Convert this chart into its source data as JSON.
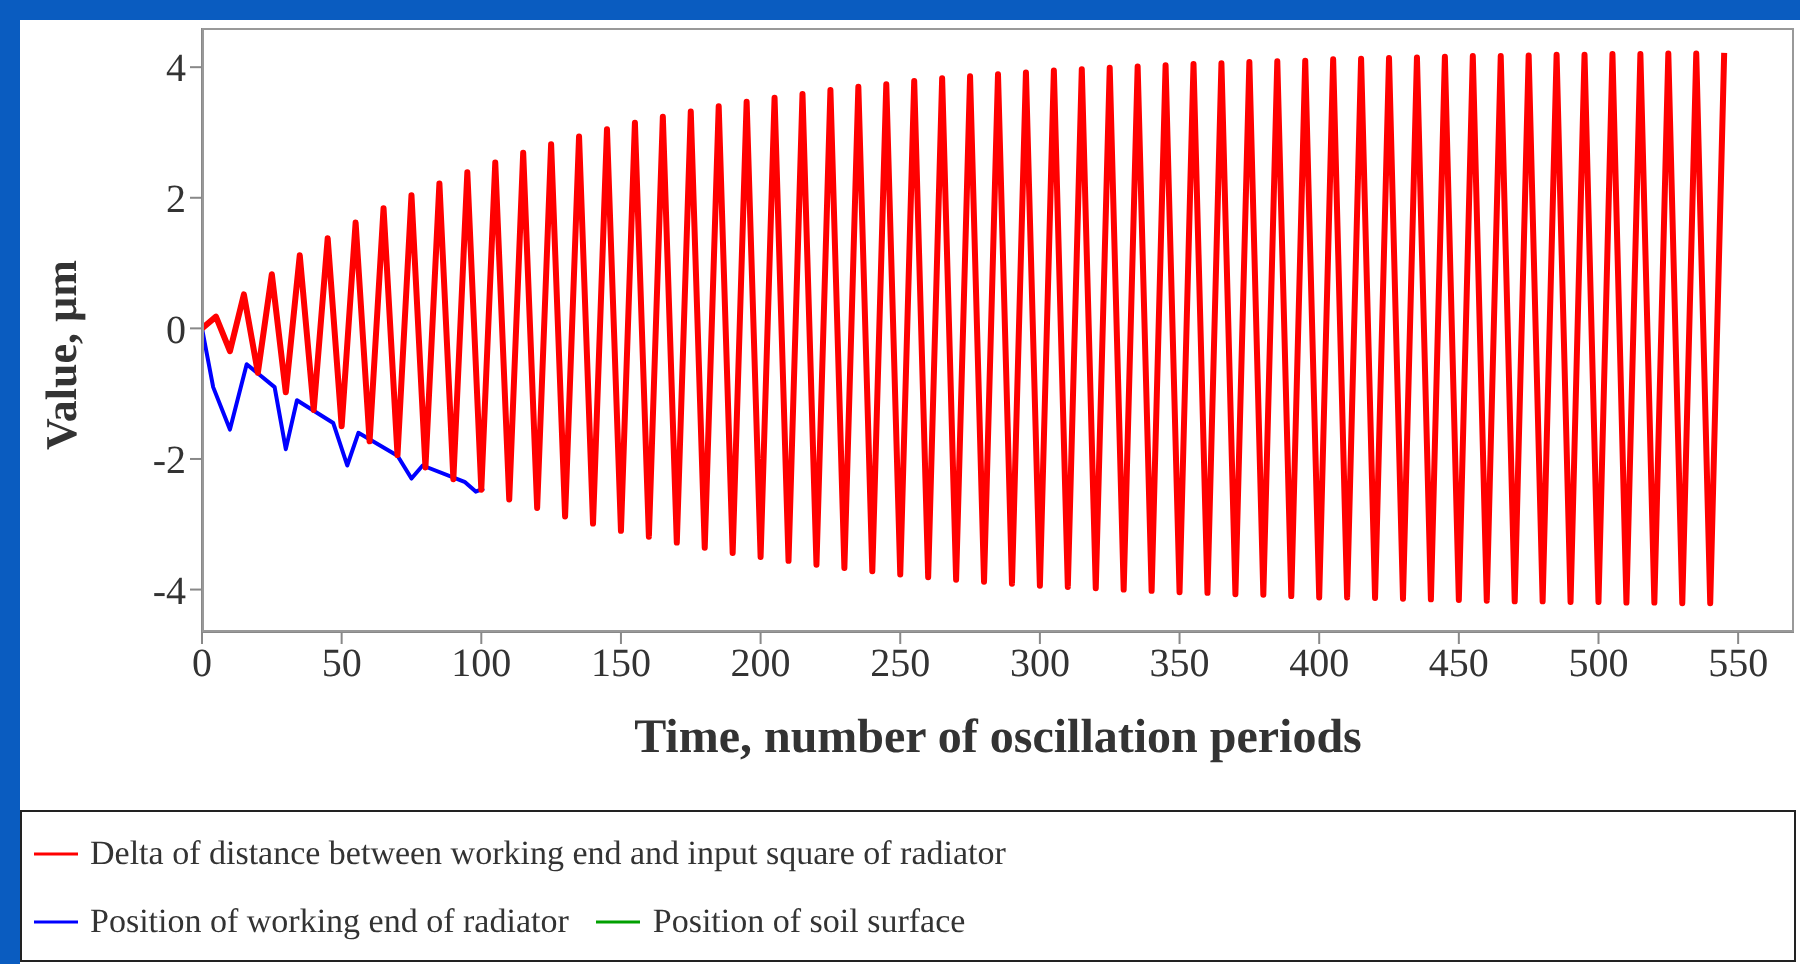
{
  "chart_data": {
    "type": "line",
    "xlabel": "Time, number of oscillation periods",
    "ylabel": "Value, µm",
    "xlim": [
      0,
      570
    ],
    "xticks": [
      0,
      50,
      100,
      150,
      200,
      250,
      300,
      350,
      400,
      450,
      500,
      550
    ],
    "ylim": [
      -4.65,
      4.6
    ],
    "yticks": [
      -4,
      -2,
      0,
      2,
      4
    ],
    "legend": "bottom",
    "marker": "none",
    "line_style": "solid",
    "series": [
      {
        "name": "Position of working end of radiator",
        "color": "#0000ff",
        "x": [
          0,
          4,
          10,
          16,
          26,
          30,
          34,
          47,
          52,
          56,
          70,
          75,
          79,
          94,
          98,
          101
        ],
        "values": [
          0,
          -0.9,
          -1.55,
          -0.55,
          -0.9,
          -1.85,
          -1.1,
          -1.45,
          -2.1,
          -1.6,
          -1.95,
          -2.3,
          -2.1,
          -2.35,
          -2.5,
          -2.45
        ]
      },
      {
        "name": "Delta of distance between working end and input square of radiator",
        "color": "#ff0000",
        "x": [
          0,
          5,
          10,
          15,
          20,
          25,
          30,
          35,
          40,
          45,
          50,
          55,
          60,
          65,
          70,
          75,
          80,
          85,
          90,
          95,
          100,
          105,
          110,
          115,
          120,
          125,
          130,
          135,
          140,
          145,
          150,
          155,
          160,
          165,
          170,
          175,
          180,
          185,
          190,
          195,
          200,
          205,
          210,
          215,
          220,
          225,
          230,
          235,
          240,
          245,
          250,
          255,
          260,
          265,
          270,
          275,
          280,
          285,
          290,
          295,
          300,
          305,
          310,
          315,
          320,
          325,
          330,
          335,
          340,
          345,
          350,
          355,
          360,
          365,
          370,
          375,
          380,
          385,
          390,
          395,
          400,
          405,
          410,
          415,
          420,
          425,
          430,
          435,
          440,
          445,
          450,
          455,
          460,
          465,
          470,
          475,
          480,
          485,
          490,
          495,
          500,
          505,
          510,
          515,
          520,
          525,
          530,
          535,
          540,
          545
        ],
        "values": [
          0,
          0.18,
          -0.35,
          0.52,
          -0.68,
          0.83,
          -0.98,
          1.12,
          -1.25,
          1.38,
          -1.5,
          1.62,
          -1.73,
          1.84,
          -1.94,
          2.04,
          -2.13,
          2.22,
          -2.31,
          2.39,
          -2.47,
          2.54,
          -2.62,
          2.69,
          -2.75,
          2.82,
          -2.88,
          2.94,
          -2.99,
          3.05,
          -3.1,
          3.15,
          -3.19,
          3.24,
          -3.28,
          3.32,
          -3.36,
          3.4,
          -3.44,
          3.47,
          -3.5,
          3.53,
          -3.56,
          3.59,
          -3.62,
          3.65,
          -3.67,
          3.7,
          -3.72,
          3.74,
          -3.77,
          3.79,
          -3.81,
          3.83,
          -3.85,
          3.86,
          -3.88,
          3.89,
          -3.91,
          3.92,
          -3.94,
          3.95,
          -3.96,
          3.97,
          -3.98,
          3.99,
          -4,
          4.01,
          -4.02,
          4.03,
          -4.04,
          4.05,
          -4.05,
          4.06,
          -4.07,
          4.08,
          -4.08,
          4.09,
          -4.1,
          4.1,
          -4.12,
          4.12,
          -4.12,
          4.13,
          -4.13,
          4.14,
          -4.14,
          4.15,
          -4.15,
          4.16,
          -4.16,
          4.17,
          -4.17,
          4.17,
          -4.18,
          4.18,
          -4.18,
          4.19,
          -4.19,
          4.19,
          -4.19,
          4.2,
          -4.2,
          4.2,
          -4.2,
          4.21,
          -4.21,
          4.21,
          -4.21,
          4.22
        ]
      },
      {
        "name": "Position of soil surface",
        "color": "#00a000"
      }
    ]
  }
}
